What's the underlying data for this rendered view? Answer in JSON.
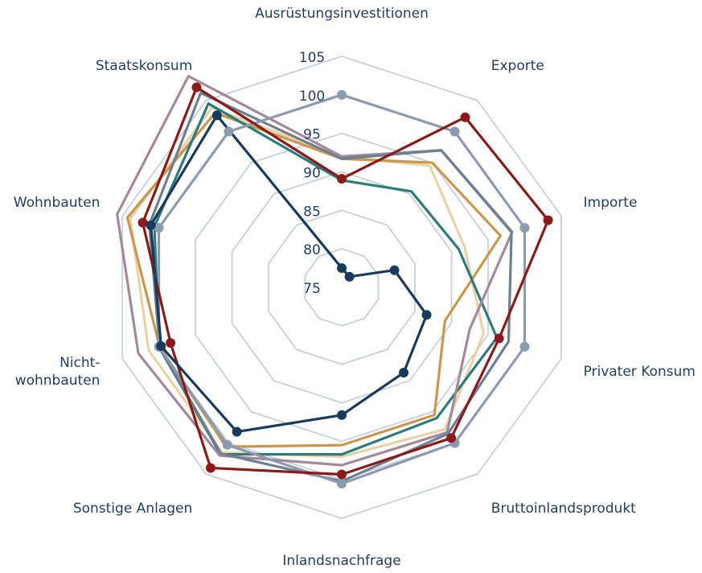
{
  "chart_data": {
    "type": "radar",
    "categories": [
      "Ausrüstungsinvestitionen",
      "Exporte",
      "Importe",
      "Privater Konsum",
      "Bruttoinlandsprodukt",
      "Inlandsnachfrage",
      "Sonstige Anlagen",
      "Nicht-\nwohnbauten",
      "Wohnbauten",
      "Staatskonsum"
    ],
    "rlim": [
      75,
      105
    ],
    "rticks": [
      75,
      80,
      85,
      90,
      95,
      100,
      105
    ],
    "grid": true,
    "series": [
      {
        "color": "#e8d3a8",
        "markers": false,
        "values": [
          92,
          94.5,
          91.8,
          94.4,
          97.8,
          97,
          101.5,
          101.4,
          103.9,
          103.8
        ]
      },
      {
        "color": "#c9974e",
        "markers": false,
        "values": [
          91.7,
          95,
          96.7,
          89.1,
          95.5,
          95.5,
          100.6,
          99.9,
          104.3,
          103
        ]
      },
      {
        "color": "#2e7b7b",
        "markers": false,
        "values": [
          88.9,
          90.4,
          91,
          96.2,
          96,
          96.7,
          101.8,
          100,
          100.6,
          104.5
        ]
      },
      {
        "color": "#a38a9a",
        "markers": false,
        "values": [
          92,
          97,
          98.3,
          92.5,
          98.3,
          98.1,
          102,
          102.8,
          105.7,
          108.9
        ]
      },
      {
        "color": "#6e7f92",
        "markers": false,
        "values": [
          91.7,
          97,
          98.2,
          97.8,
          98.5,
          100.2,
          101.7,
          99.9,
          101.3,
          106.2
        ]
      },
      {
        "color": "#8a9bb0",
        "markers": true,
        "values": [
          100,
          100,
          100,
          100,
          100,
          100.5,
          100.3,
          100,
          100,
          100
        ]
      },
      {
        "color": "#8b1a1a",
        "markers": true,
        "values": [
          89.1,
          102.3,
          103.2,
          96.5,
          99.2,
          99.3,
          104,
          98.4,
          102.2,
          107.1
        ]
      },
      {
        "color": "#1a3a5c",
        "markers": true,
        "values": [
          77.5,
          76.7,
          82.2,
          86.6,
          88.7,
          91.6,
          98.2,
          99.7,
          101.1,
          102.6
        ]
      }
    ]
  }
}
